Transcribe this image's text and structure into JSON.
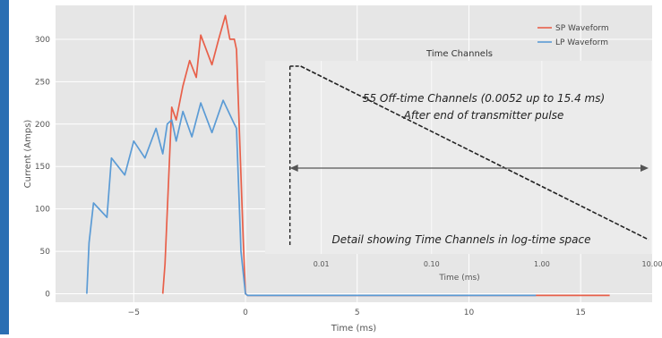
{
  "chart_data": [
    {
      "type": "line",
      "xlabel": "Time (ms)",
      "ylabel": "Current (Amps)",
      "xlim": [
        -8.5,
        18.2
      ],
      "ylim": [
        -10,
        340
      ],
      "xticks": [
        -5,
        0,
        5,
        10,
        15
      ],
      "yticks": [
        0,
        50,
        100,
        150,
        200,
        250,
        300
      ],
      "grid": true,
      "legend": "top-right",
      "series": [
        {
          "name": "SP Waveform",
          "color": "#e8604a",
          "x": [
            -3.7,
            -3.6,
            -3.3,
            -3.1,
            -2.8,
            -2.5,
            -2.2,
            -2.0,
            -1.5,
            -1.2,
            -0.9,
            -0.7,
            -0.5,
            -0.4,
            -0.1,
            0.0,
            0.1,
            5,
            10,
            13,
            16.3
          ],
          "y": [
            0,
            35,
            220,
            205,
            245,
            275,
            255,
            305,
            270,
            300,
            328,
            300,
            300,
            288,
            65,
            0,
            -2,
            -2,
            -2,
            -2,
            -2
          ]
        },
        {
          "name": "LP Waveform",
          "color": "#5b9bd5",
          "x": [
            -7.1,
            -7.0,
            -6.8,
            -6.2,
            -6.0,
            -5.4,
            -5.0,
            -4.5,
            -4.0,
            -3.7,
            -3.5,
            -3.3,
            -3.1,
            -2.8,
            -2.4,
            -2.0,
            -1.5,
            -1.0,
            -0.5,
            -0.4,
            -0.2,
            0.0,
            0.1,
            5,
            10,
            13
          ],
          "y": [
            0,
            60,
            107,
            90,
            160,
            140,
            180,
            160,
            195,
            165,
            200,
            205,
            180,
            215,
            185,
            225,
            190,
            228,
            200,
            195,
            50,
            0,
            -2,
            -2,
            -2,
            -2
          ]
        }
      ]
    },
    {
      "type": "line",
      "title": "Time Channels",
      "xlabel": "Time (ms)",
      "xscale": "log",
      "xlim": [
        0.0031,
        10.0
      ],
      "xticks": [
        0.01,
        0.1,
        1.0,
        10.0
      ],
      "xtick_labels": [
        "0.01",
        "0.10",
        "1.00",
        "10.00"
      ],
      "grid": true,
      "annotations": [
        "55 Off-time Channels (0.0052 up to 15.4 ms)",
        "After end of transmitter pulse",
        "Detail showing Time Channels in log-time space"
      ],
      "channel_count": 55,
      "channel_start_ms": 0.0052,
      "channel_end_ms": 15.4
    }
  ]
}
